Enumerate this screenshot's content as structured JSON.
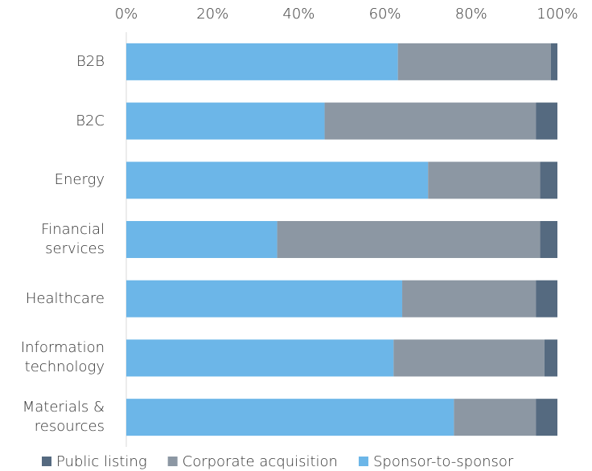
{
  "chart_data": {
    "type": "stacked-bar-horizontal",
    "categories": [
      "B2B",
      "B2C",
      "Energy",
      "Financial services",
      "Healthcare",
      "Information technology",
      "Materials & resources"
    ],
    "series": [
      {
        "name": "Public listing",
        "color": "#556a80",
        "values": [
          1.5,
          5,
          4,
          4,
          5,
          3,
          5
        ]
      },
      {
        "name": "Corporate acquisition",
        "color": "#8c97a3",
        "values": [
          35.5,
          49,
          26,
          61,
          31,
          35,
          19
        ]
      },
      {
        "name": "Sponsor-to-sponsor",
        "color": "#6cb6e8",
        "values": [
          63,
          46,
          70,
          35,
          64,
          62,
          76
        ]
      }
    ],
    "xlim": [
      0,
      100
    ],
    "xticks": [
      {
        "value": 0,
        "label": "0%"
      },
      {
        "value": 20,
        "label": "20%"
      },
      {
        "value": 40,
        "label": "40%"
      },
      {
        "value": 60,
        "label": "60%"
      },
      {
        "value": 80,
        "label": "80%"
      },
      {
        "value": 100,
        "label": "100%"
      }
    ],
    "legend": "bottom"
  }
}
